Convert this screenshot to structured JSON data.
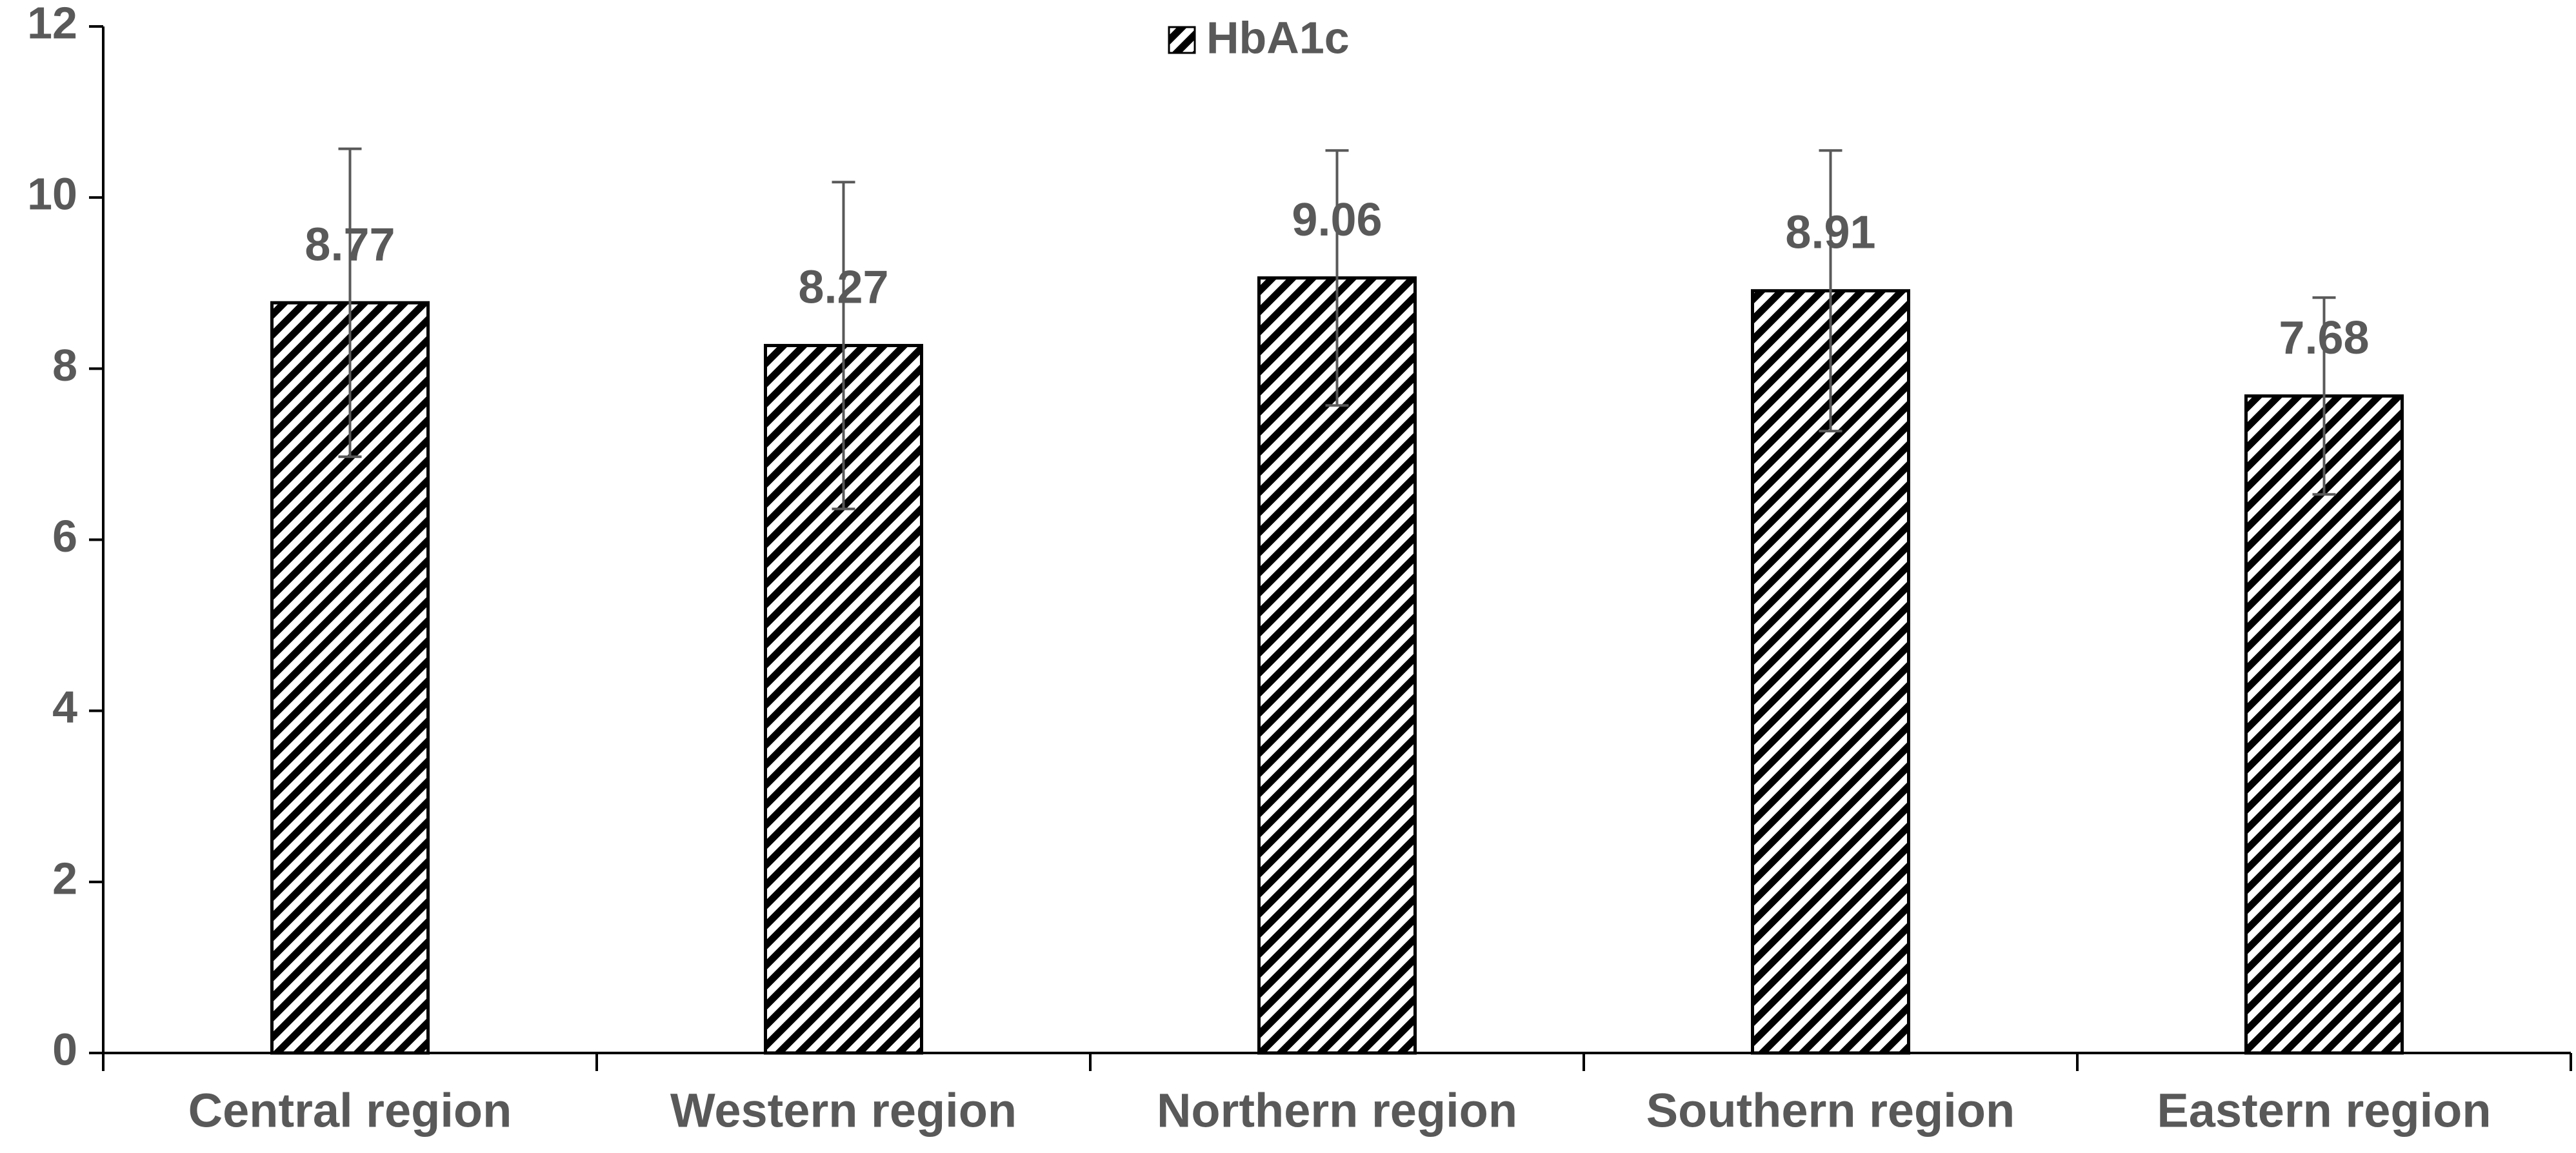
{
  "chart_data": {
    "type": "bar",
    "categories": [
      "Central region",
      "Western region",
      "Northern region",
      "Southern region",
      "Eastern region"
    ],
    "series": [
      {
        "name": "HbA1c",
        "color": "#000000",
        "values": [
          8.77,
          8.27,
          9.06,
          8.91,
          7.68
        ],
        "errors": [
          1.8,
          1.91,
          1.49,
          1.64,
          1.15
        ]
      }
    ],
    "ylim": [
      0,
      12
    ],
    "yticks": [
      0,
      2,
      4,
      6,
      8,
      10,
      12
    ],
    "grid": false,
    "legend": "top"
  }
}
